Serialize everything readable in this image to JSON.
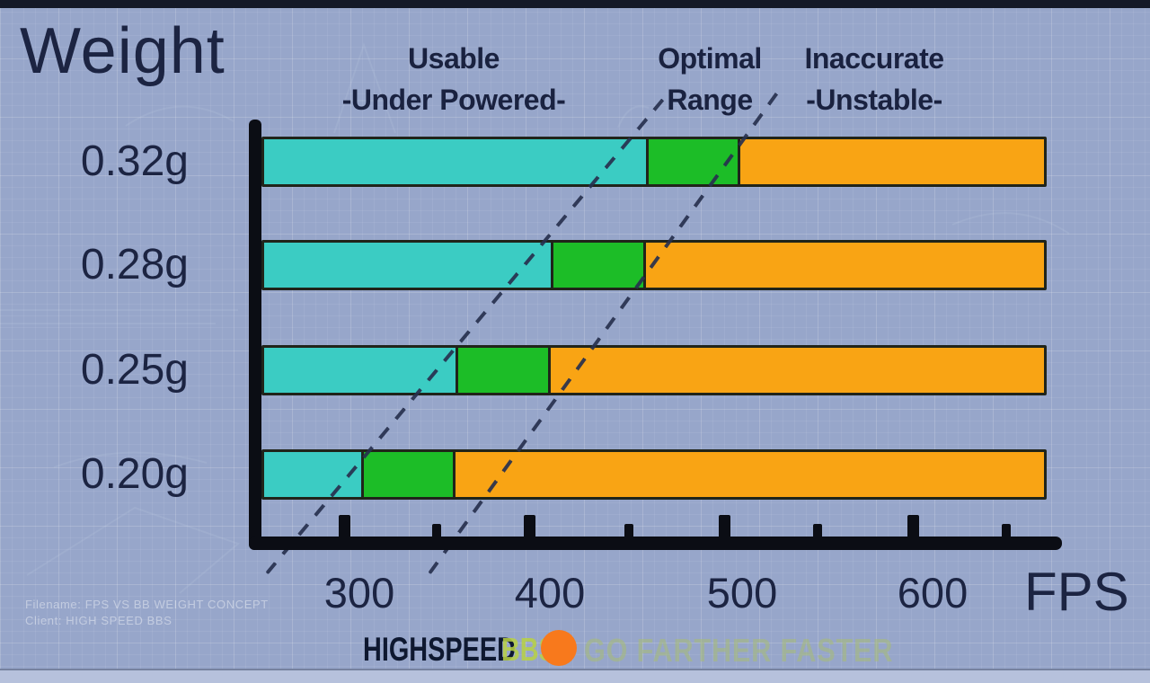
{
  "chart": {
    "title": "Weight"
  },
  "zone_headers": [
    {
      "line1": "Usable",
      "line2": "-Under Powered-"
    },
    {
      "line1": "Optimal",
      "line2": "Range"
    },
    {
      "line1": "Inaccurate",
      "line2": "-Unstable-"
    }
  ],
  "chart_data": {
    "type": "bar",
    "orientation": "horizontal",
    "stacked": true,
    "title": "Weight",
    "xlabel": "FPS",
    "ylabel": "Weight",
    "x_ticks": [
      300,
      400,
      500,
      600
    ],
    "x_axis_range_fps": [
      250,
      660
    ],
    "grid": false,
    "categories": [
      "0.32g",
      "0.28g",
      "0.25g",
      "0.20g"
    ],
    "zones": [
      "Usable -Under Powered-",
      "Optimal Range",
      "Inaccurate -Unstable-"
    ],
    "colors": {
      "usable": "#3bccc3",
      "optimal": "#1cbd27",
      "inaccurate": "#f9a414"
    },
    "series": [
      {
        "category": "0.32g",
        "usable_max_fps": 450,
        "optimal_max_fps": 500,
        "bar_end_fps": 660
      },
      {
        "category": "0.28g",
        "usable_max_fps": 400,
        "optimal_max_fps": 450,
        "bar_end_fps": 660
      },
      {
        "category": "0.25g",
        "usable_max_fps": 350,
        "optimal_max_fps": 400,
        "bar_end_fps": 660
      },
      {
        "category": "0.20g",
        "usable_max_fps": 300,
        "optimal_max_fps": 350,
        "bar_end_fps": 660
      }
    ]
  },
  "footer": {
    "brand": "HIGHSPEED",
    "brand_accent": "BBS",
    "dot_color": "#f8791c",
    "tagline": "GO FARTHER FASTER"
  },
  "corner_note": {
    "line1": "Filename: FPS VS BB WEIGHT CONCEPT",
    "line2": "Client: HIGH SPEED BBS"
  }
}
